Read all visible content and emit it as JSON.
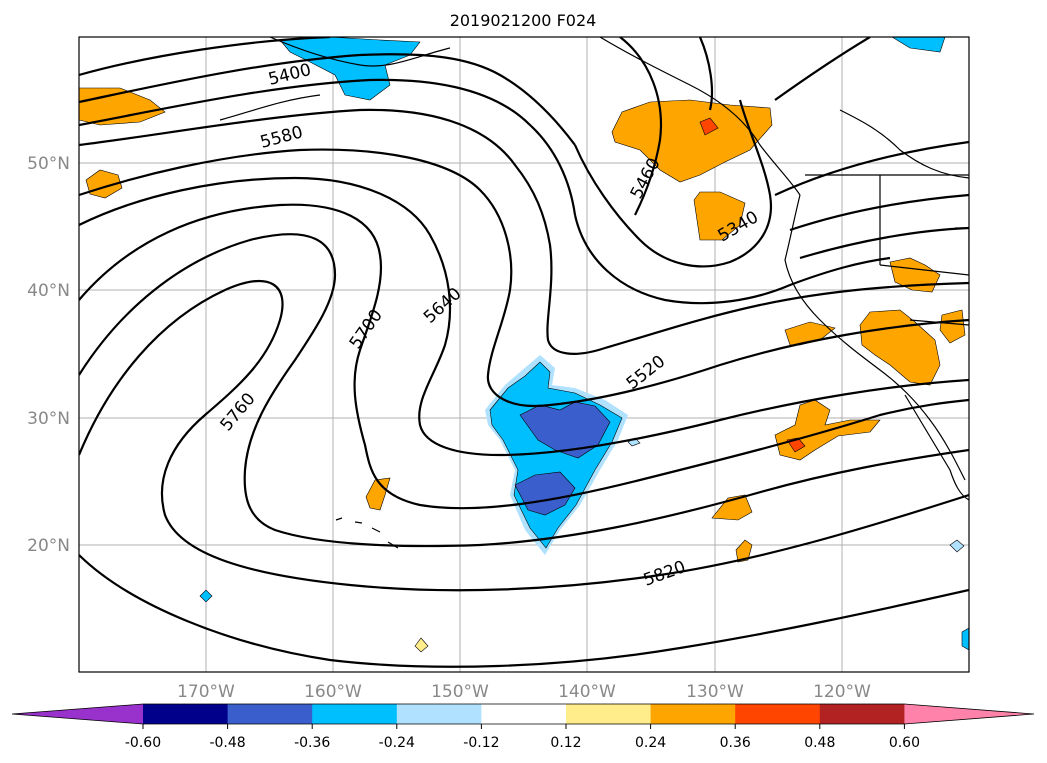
{
  "title": "2019021200 F024",
  "lat_labels": [
    "50°N",
    "40°N",
    "30°N",
    "20°N"
  ],
  "lon_labels": [
    "170°W",
    "160°W",
    "150°W",
    "140°W",
    "130°W",
    "120°W"
  ],
  "contour_labels": [
    "5400",
    "5580",
    "5460",
    "5340",
    "5700",
    "5640",
    "5760",
    "5520",
    "5820"
  ],
  "colorbar": {
    "ticks": [
      "-0.60",
      "-0.48",
      "-0.36",
      "-0.24",
      "-0.12",
      "0.12",
      "0.24",
      "0.36",
      "0.48",
      "0.60"
    ],
    "colors": [
      "#9932cc",
      "#00008b",
      "#3a5fcd",
      "#00bfff",
      "#b0e2ff",
      "#ffffff",
      "#ffec8b",
      "#ffa500",
      "#ff4500",
      "#b22222",
      "#ff82ab"
    ]
  }
}
